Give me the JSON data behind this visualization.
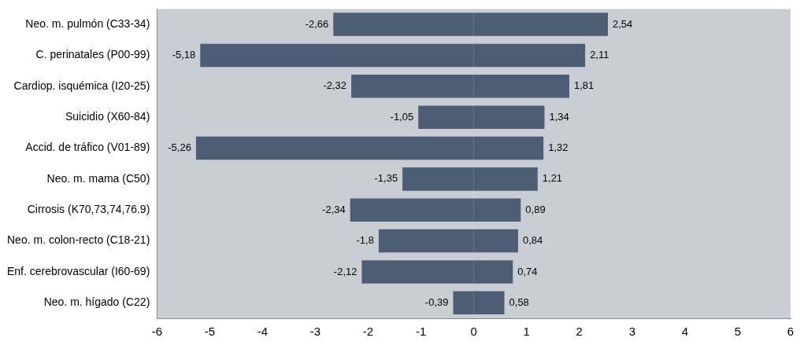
{
  "chart_data": {
    "type": "bar",
    "orientation": "horizontal",
    "stacked": true,
    "categories": [
      "Neo. m. pulmón (C33-34)",
      "C. perinatales (P00-99)",
      "Cardiop. isquémica (I20-25)",
      "Suicidio (X60-84)",
      "Accid. de tráfico (V01-89)",
      "Neo. m. mama (C50)",
      "Cirrosis (K70,73,74,76.9)",
      "Neo. m. colon-recto (C18-21)",
      "Enf. cerebrovascular (I60-69)",
      "Neo. m. hígado (C22)"
    ],
    "series": [
      {
        "color": "#4d5d74",
        "values": [
          -2.66,
          -5.18,
          -2.32,
          -1.05,
          -5.26,
          -1.35,
          -2.34,
          -1.8,
          -2.12,
          -0.39
        ],
        "value_labels": [
          "-2,66",
          "-5,18",
          "-2,32",
          "-1,05",
          "-5,26",
          "-1,35",
          "-2,34",
          "-1,8",
          "-2,12",
          "-0,39"
        ]
      },
      {
        "color": "#4d5d74",
        "values": [
          2.54,
          2.11,
          1.81,
          1.34,
          1.32,
          1.21,
          0.89,
          0.84,
          0.74,
          0.58
        ],
        "value_labels": [
          "2,54",
          "2,11",
          "1,81",
          "1,34",
          "1,32",
          "1,21",
          "0,89",
          "0,84",
          "0,74",
          "0,58"
        ]
      }
    ],
    "xlim": [
      -6,
      6
    ],
    "xticks": [
      -6,
      -5,
      -4,
      -3,
      -2,
      -1,
      0,
      1,
      2,
      3,
      4,
      5,
      6
    ],
    "grid": false,
    "legend": false
  }
}
